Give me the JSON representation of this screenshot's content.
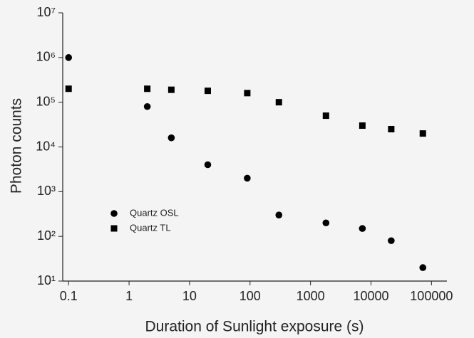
{
  "chart_data": {
    "type": "scatter",
    "xlabel": "Duration of Sunlight exposure (s)",
    "ylabel": "Photon counts",
    "xscale": "log",
    "yscale": "log",
    "xlim": [
      0.08,
      180000
    ],
    "ylim": [
      10,
      10000000
    ],
    "xticks": [
      0.1,
      1,
      10,
      100,
      1000,
      10000,
      100000
    ],
    "yticks": [
      {
        "value": 10,
        "label": "10¹"
      },
      {
        "value": 100,
        "label": "10²"
      },
      {
        "value": 1000,
        "label": "10³"
      },
      {
        "value": 10000,
        "label": "10⁴"
      },
      {
        "value": 100000,
        "label": "10⁵"
      },
      {
        "value": 1000000,
        "label": "10⁶"
      },
      {
        "value": 10000000,
        "label": "10⁷"
      }
    ],
    "legend": "left",
    "series": [
      {
        "name": "Quartz OSL",
        "color": "#000000",
        "marker": "circle",
        "x": [
          0.1,
          2,
          5,
          20,
          90,
          300,
          1800,
          7200,
          21600,
          72000
        ],
        "values": [
          1000000,
          80000,
          16000,
          4000,
          2000,
          300,
          200,
          150,
          80,
          20
        ]
      },
      {
        "name": "Quartz TL",
        "color": "#000000",
        "marker": "square",
        "x": [
          0.1,
          2,
          5,
          20,
          90,
          300,
          1800,
          7200,
          21600,
          72000
        ],
        "values": [
          200000,
          200000,
          190000,
          180000,
          160000,
          100000,
          50000,
          30000,
          25000,
          20000
        ]
      }
    ]
  }
}
